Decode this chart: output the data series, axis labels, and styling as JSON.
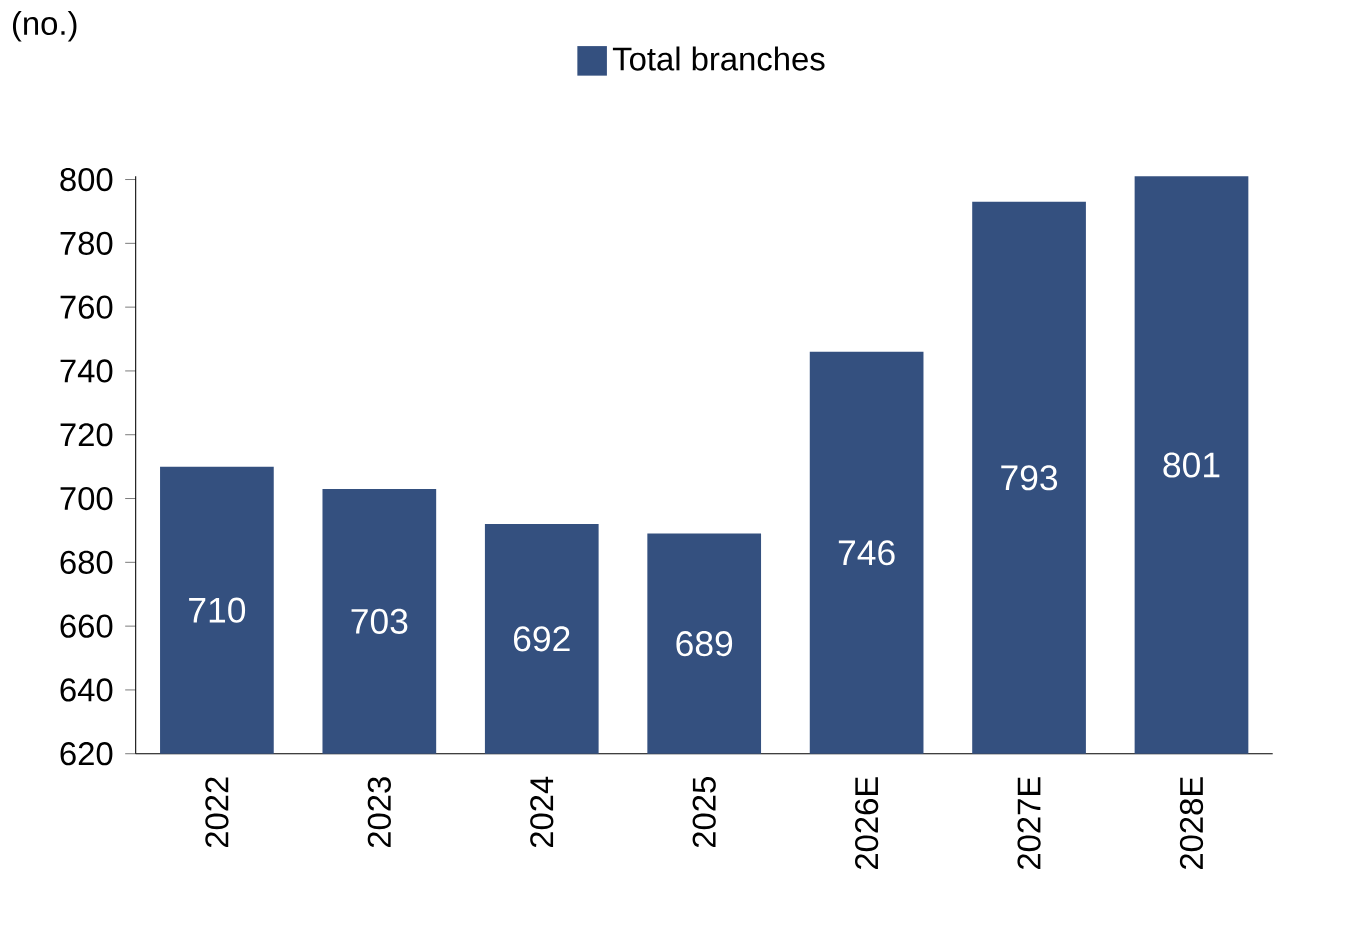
{
  "chart_data": {
    "type": "bar",
    "ylabel": "(no.)",
    "categories": [
      "2022",
      "2023",
      "2024",
      "2025",
      "2026E",
      "2027E",
      "2028E"
    ],
    "series": [
      {
        "name": "Total branches",
        "color": "#34507f",
        "values": [
          710,
          703,
          692,
          689,
          746,
          793,
          801
        ]
      }
    ],
    "ylim": [
      620,
      801
    ],
    "yticks": [
      620,
      640,
      660,
      680,
      700,
      720,
      740,
      760,
      780,
      800
    ],
    "data_labels": true,
    "legend": "top",
    "grid": false
  }
}
